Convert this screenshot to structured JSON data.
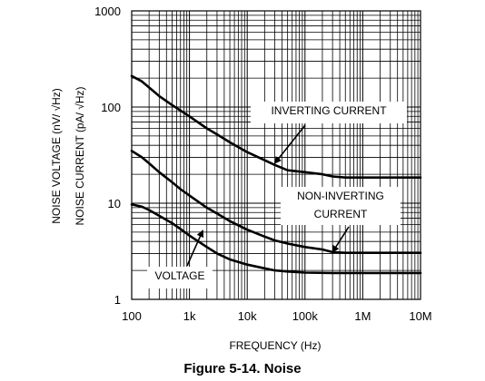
{
  "chart_data": {
    "type": "line",
    "xscale": "log",
    "yscale": "log",
    "xlim": [
      100,
      10000000
    ],
    "ylim": [
      1,
      1000
    ],
    "grid": true,
    "xlabel": "FREQUENCY (Hz)",
    "ylabel_lines": [
      "NOISE VOLTAGE (nV/ √Hz)",
      "NOISE CURRENT (pA/ √Hz)"
    ],
    "x_ticks": [
      {
        "value": 100,
        "label": "100"
      },
      {
        "value": 1000,
        "label": "1k"
      },
      {
        "value": 10000,
        "label": "10k"
      },
      {
        "value": 100000,
        "label": "100k"
      },
      {
        "value": 1000000,
        "label": "1M"
      },
      {
        "value": 10000000,
        "label": "10M"
      }
    ],
    "y_ticks": [
      {
        "value": 1,
        "label": "1"
      },
      {
        "value": 10,
        "label": "10"
      },
      {
        "value": 100,
        "label": "100"
      },
      {
        "value": 1000,
        "label": "1000"
      }
    ],
    "series": [
      {
        "name": "INVERTING CURRENT",
        "x": [
          100,
          150,
          200,
          300,
          500,
          700,
          1000,
          2000,
          3000,
          5000,
          10000,
          20000,
          30000,
          50000,
          100000,
          200000,
          300000,
          500000,
          1000000,
          3000000,
          10000000
        ],
        "y": [
          210,
          185,
          160,
          130,
          105,
          92,
          80,
          60,
          52,
          43,
          34,
          28,
          25,
          22,
          21,
          20,
          19,
          18.5,
          18.5,
          18.5,
          18.5
        ]
      },
      {
        "name": "NON-INVERTING CURRENT",
        "x": [
          100,
          150,
          200,
          300,
          500,
          700,
          1000,
          2000,
          3000,
          5000,
          10000,
          20000,
          30000,
          50000,
          100000,
          200000,
          300000,
          500000,
          1000000,
          3000000,
          10000000
        ],
        "y": [
          35,
          30,
          26,
          21,
          16.5,
          14,
          12,
          9,
          7.8,
          6.5,
          5.3,
          4.5,
          4.1,
          3.8,
          3.5,
          3.3,
          3.1,
          3.05,
          3.05,
          3.05,
          3.05
        ]
      },
      {
        "name": "VOLTAGE",
        "x": [
          100,
          150,
          200,
          300,
          500,
          700,
          1000,
          2000,
          3000,
          5000,
          10000,
          20000,
          30000,
          50000,
          100000,
          300000,
          1000000,
          3000000,
          10000000
        ],
        "y": [
          9.7,
          9.2,
          8.5,
          7.4,
          6.2,
          5.4,
          4.6,
          3.5,
          3.0,
          2.6,
          2.3,
          2.1,
          2.0,
          1.95,
          1.9,
          1.88,
          1.88,
          1.88,
          1.88
        ]
      }
    ],
    "annotations": [
      {
        "lines": [
          "INVERTING CURRENT"
        ],
        "series": "INVERTING CURRENT",
        "label_at": [
          1500000,
          200000
        ],
        "arrow_to": [
          30000,
          26
        ]
      },
      {
        "lines": [
          "NON-INVERTING",
          "CURRENT"
        ],
        "series": "NON-INVERTING CURRENT",
        "label_at": [
          1500000,
          200000
        ],
        "arrow_to": [
          300000,
          3.1
        ]
      },
      {
        "lines": [
          "VOLTAGE"
        ],
        "series": "VOLTAGE",
        "label_at": [
          2500,
          1000
        ],
        "arrow_to": [
          1700,
          5.2
        ]
      }
    ],
    "caption": "Figure 5-14. Noise"
  }
}
